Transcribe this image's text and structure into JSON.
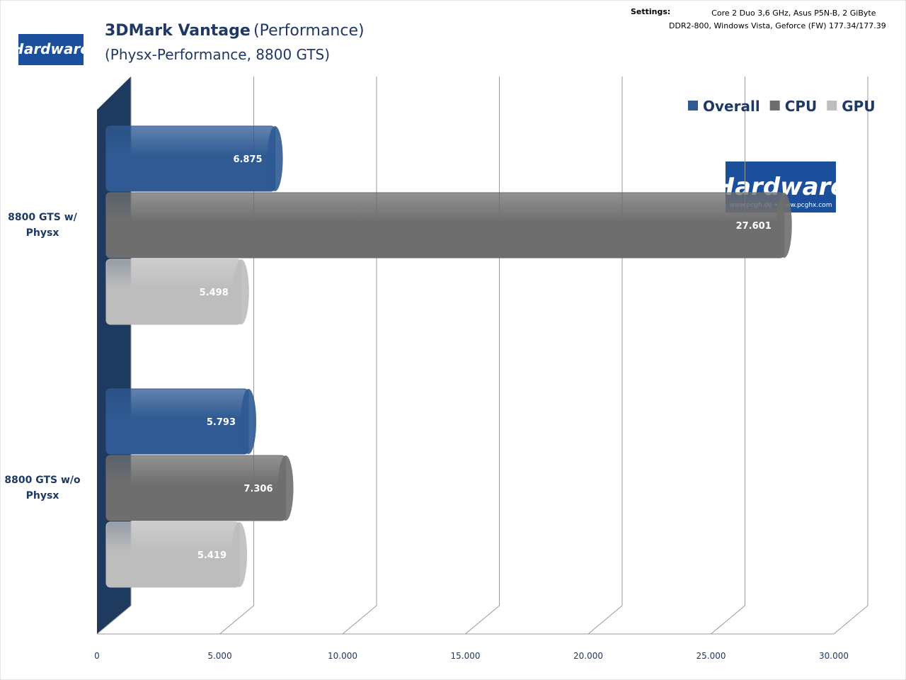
{
  "header": {
    "title": "3DMark Vantage",
    "title_suffix": "(Performance)",
    "subtitle": "(Physx-Performance, 8800 GTS)",
    "settings_label": "Settings:",
    "settings_text": "Core 2 Duo 3,6 GHz, Asus P5N-B, 2 GiByte DDR2-800, Windows Vista, Geforce (FW) 177.34/177.39",
    "logo_brand": "Hardware",
    "logo_tagline": "www.pcgh.de • www.pcghx.com"
  },
  "chart_data": {
    "type": "hbar",
    "categories": [
      "8800 GTS w/ Physx",
      "8800 GTS w/o Physx"
    ],
    "series": [
      {
        "name": "Overall",
        "color": "#2f5a93",
        "values": [
          6875,
          5793
        ],
        "value_labels": [
          "6.875",
          "5.793"
        ]
      },
      {
        "name": "CPU",
        "color": "#6e6e6e",
        "values": [
          27601,
          7306
        ],
        "value_labels": [
          "27.601",
          "7.306"
        ]
      },
      {
        "name": "GPU",
        "color": "#bdbdbd",
        "values": [
          5498,
          5419
        ],
        "value_labels": [
          "5.498",
          "5.419"
        ]
      }
    ],
    "xlim": [
      0,
      30000
    ],
    "xticks": [
      0,
      {
        "value": 5000,
        "label": "5.000"
      },
      {
        "value": 10000,
        "label": "10.000"
      },
      {
        "value": 15000,
        "label": "15.000"
      },
      {
        "value": 20000,
        "label": "20.000"
      },
      {
        "value": 25000,
        "label": "25.000"
      },
      {
        "value": 30000,
        "label": "30.000"
      }
    ],
    "grid": true,
    "legend": "top-right"
  }
}
